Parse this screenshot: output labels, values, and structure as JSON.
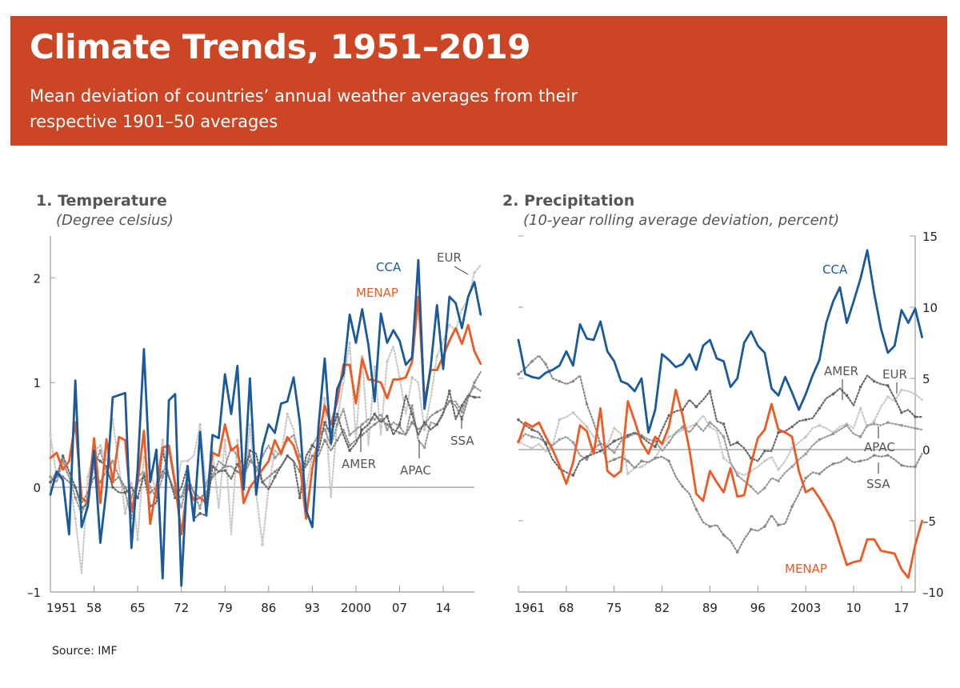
{
  "banner": {
    "title": "Climate Trends, 1951–2019",
    "subtitle": "Mean deviation of countries’ annual weather averages from their respective 1901–50 averages"
  },
  "source": "Source: IMF",
  "colors": {
    "banner": "#cc4524",
    "CCA": "#1a5a9a",
    "MENAP": "#ee5a24",
    "AMER": "#666666",
    "APAC": "#999999",
    "EUR": "#c8c8c8",
    "SSA": "#8a8a8a",
    "axis": "#999999"
  },
  "chart_data": [
    {
      "type": "line",
      "number": "1.",
      "title": "Temperature",
      "subtitle": "(Degree celsius)",
      "xlabel": "",
      "ylabel": "Degree celsius",
      "xlim": [
        1951,
        2019
      ],
      "ylim": [
        -1,
        2.4
      ],
      "yaxis_side": "left",
      "yticks": [
        -1,
        0,
        1,
        2
      ],
      "ytick_labels": [
        "–1",
        "0",
        "1",
        "2"
      ],
      "xticks": [
        1951,
        1958,
        1965,
        1972,
        1979,
        1986,
        1993,
        2000,
        2007,
        2014
      ],
      "xtick_labels": [
        "1951",
        "58",
        "65",
        "72",
        "79",
        "86",
        "93",
        "2000",
        "07",
        "14"
      ],
      "grid": false,
      "zero_line": true,
      "x_start": 1951,
      "series": [
        {
          "name": "CCA",
          "style": "solid",
          "values": [
            -0.07,
            0.15,
            0.07,
            -0.45,
            1.02,
            -0.38,
            -0.18,
            0.35,
            -0.53,
            -0.02,
            0.86,
            0.88,
            0.9,
            -0.58,
            0.18,
            1.32,
            0.05,
            0.36,
            -0.87,
            0.83,
            0.89,
            -0.94,
            0.2,
            -0.32,
            0.53,
            -0.27,
            0.5,
            0.47,
            1.08,
            0.7,
            1.16,
            -0.02,
            1.04,
            -0.07,
            0.38,
            0.6,
            0.52,
            0.8,
            0.82,
            1.05,
            0.62,
            -0.22,
            -0.38,
            0.58,
            1.23,
            0.42,
            0.94,
            1.08,
            1.65,
            1.38,
            1.7,
            1.36,
            0.82,
            1.66,
            1.38,
            1.5,
            1.4,
            1.17,
            1.24,
            2.17,
            0.75,
            1.15,
            1.74,
            1.13,
            1.82,
            1.76,
            1.52,
            1.82,
            1.96,
            1.65
          ]
        },
        {
          "name": "MENAP",
          "style": "solid",
          "values": [
            0.28,
            0.33,
            0.17,
            0.25,
            0.62,
            -0.1,
            -0.15,
            0.47,
            -0.15,
            0.46,
            0.05,
            0.48,
            0.45,
            -0.23,
            0.05,
            0.54,
            -0.35,
            0.0,
            0.38,
            0.4,
            0.04,
            -0.45,
            0.02,
            -0.12,
            -0.1,
            -0.15,
            0.33,
            0.3,
            0.6,
            0.35,
            0.4,
            -0.15,
            0.0,
            0.08,
            0.17,
            0.25,
            0.45,
            0.32,
            0.48,
            0.4,
            0.22,
            -0.3,
            0.18,
            0.45,
            0.78,
            0.6,
            0.82,
            1.17,
            1.17,
            0.8,
            1.23,
            1.03,
            1.02,
            1.0,
            0.85,
            1.03,
            1.03,
            1.05,
            1.2,
            1.82,
            0.82,
            1.12,
            1.12,
            1.25,
            1.4,
            1.52,
            1.37,
            1.55,
            1.3,
            1.18
          ]
        },
        {
          "name": "AMER",
          "style": "dotted",
          "values": [
            0.05,
            0.1,
            0.3,
            0.15,
            0.0,
            -0.2,
            -0.15,
            0.3,
            0.25,
            0.2,
            0.0,
            -0.05,
            -0.05,
            0.0,
            -0.1,
            0.12,
            -0.18,
            -0.15,
            0.35,
            0.1,
            -0.1,
            0.0,
            0.2,
            -0.3,
            -0.25,
            -0.27,
            0.2,
            0.15,
            0.16,
            0.08,
            0.22,
            0.1,
            0.35,
            0.32,
            0.05,
            -0.02,
            0.1,
            0.2,
            0.3,
            0.25,
            -0.1,
            0.3,
            0.4,
            0.35,
            0.62,
            0.5,
            0.7,
            0.5,
            0.35,
            0.42,
            0.55,
            0.6,
            0.7,
            0.62,
            0.68,
            0.5,
            0.6,
            0.88,
            0.7,
            0.5,
            0.62,
            0.55,
            0.6,
            0.7,
            0.92,
            0.65,
            0.78,
            0.88,
            0.86,
            0.86
          ]
        },
        {
          "name": "APAC",
          "style": "dotted",
          "values": [
            0.1,
            0.05,
            0.25,
            0.1,
            -0.1,
            -0.25,
            -0.1,
            0.2,
            0.35,
            0.15,
            0.25,
            0.1,
            -0.05,
            -0.3,
            0.1,
            0.15,
            0.0,
            -0.1,
            0.1,
            0.35,
            0.0,
            -0.2,
            0.1,
            -0.05,
            -0.2,
            0.05,
            0.1,
            0.25,
            0.2,
            0.38,
            0.3,
            0.2,
            0.3,
            0.15,
            0.3,
            0.4,
            0.28,
            0.35,
            0.45,
            0.5,
            0.3,
            0.2,
            0.4,
            0.5,
            0.55,
            0.4,
            0.6,
            0.75,
            0.5,
            0.55,
            0.6,
            0.65,
            0.65,
            0.7,
            0.55,
            0.62,
            0.58,
            0.5,
            0.78,
            0.45,
            0.38,
            0.62,
            0.6,
            0.72,
            0.82,
            0.82,
            0.72,
            0.88,
            0.96,
            0.92
          ]
        },
        {
          "name": "EUR",
          "style": "dotted",
          "values": [
            0.5,
            0.1,
            0.2,
            0.1,
            -0.3,
            -0.82,
            0.1,
            0.35,
            0.4,
            0.25,
            0.65,
            0.2,
            -0.25,
            0.05,
            -0.5,
            0.3,
            0.15,
            -0.05,
            0.45,
            0.1,
            -0.05,
            0.25,
            0.25,
            0.3,
            0.6,
            0.0,
            0.35,
            -0.2,
            0.45,
            -0.45,
            0.45,
            -0.1,
            0.6,
            -0.05,
            -0.55,
            0.0,
            0.35,
            0.3,
            0.7,
            0.55,
            0.25,
            -0.02,
            0.3,
            0.4,
            0.85,
            -0.1,
            0.65,
            1.0,
            1.38,
            0.45,
            1.25,
            0.4,
            1.15,
            0.5,
            1.2,
            1.35,
            1.05,
            0.7,
            1.05,
            1.0,
            0.55,
            0.85,
            1.25,
            1.4,
            1.55,
            1.5,
            1.7,
            1.8,
            2.05,
            2.12
          ]
        },
        {
          "name": "SSA",
          "style": "dotted",
          "values": [
            0.05,
            0.15,
            0.1,
            0.05,
            0.0,
            -0.15,
            -0.05,
            0.1,
            0.05,
            0.15,
            0.05,
            0.1,
            0.0,
            -0.1,
            0.05,
            0.1,
            -0.05,
            0.0,
            0.15,
            0.1,
            -0.05,
            -0.1,
            0.1,
            -0.05,
            -0.1,
            -0.05,
            0.1,
            0.15,
            0.2,
            0.2,
            0.15,
            0.1,
            0.25,
            0.2,
            0.05,
            0.1,
            0.15,
            0.2,
            0.3,
            0.25,
            0.15,
            0.2,
            0.3,
            0.3,
            0.45,
            0.35,
            0.45,
            0.55,
            0.4,
            0.45,
            0.5,
            0.55,
            0.6,
            0.65,
            0.6,
            0.55,
            0.52,
            0.5,
            0.62,
            0.55,
            0.6,
            0.68,
            0.72,
            0.75,
            0.82,
            0.78,
            0.65,
            0.85,
            1.0,
            1.1
          ]
        }
      ],
      "annotations": [
        {
          "label": "CCA",
          "series": "CCA"
        },
        {
          "label": "MENAP",
          "series": "MENAP"
        },
        {
          "label": "EUR",
          "series": "EUR"
        },
        {
          "label": "AMER",
          "series": "AMER"
        },
        {
          "label": "APAC",
          "series": "APAC"
        },
        {
          "label": "SSA",
          "series": "SSA"
        }
      ]
    },
    {
      "type": "line",
      "number": "2.",
      "title": "Precipitation",
      "subtitle": "(10-year rolling average deviation, percent)",
      "xlabel": "",
      "ylabel": "10-year rolling average deviation, percent",
      "xlim": [
        1961,
        2019
      ],
      "ylim": [
        -10,
        15
      ],
      "yaxis_side": "right",
      "yticks": [
        -10,
        -5,
        0,
        5,
        10,
        15
      ],
      "ytick_labels": [
        "–10",
        "–5",
        "0",
        "5",
        "10",
        "15"
      ],
      "xticks": [
        1961,
        1968,
        1975,
        1982,
        1989,
        1996,
        2003,
        2010,
        2017
      ],
      "xtick_labels": [
        "1961",
        "68",
        "75",
        "82",
        "89",
        "96",
        "2003",
        "10",
        "17"
      ],
      "grid": false,
      "zero_line": true,
      "x_start": 1961,
      "series": [
        {
          "name": "CCA",
          "style": "solid",
          "values": [
            7.7,
            5.3,
            5.1,
            5.0,
            5.4,
            5.6,
            5.9,
            6.9,
            5.9,
            8.8,
            7.8,
            7.7,
            9.0,
            6.9,
            6.2,
            4.8,
            4.6,
            4.1,
            5.0,
            1.2,
            2.8,
            6.7,
            6.3,
            5.8,
            6.0,
            6.7,
            5.6,
            7.3,
            7.7,
            6.4,
            6.2,
            4.4,
            5.0,
            7.5,
            8.3,
            7.3,
            6.8,
            4.3,
            3.8,
            5.1,
            4.0,
            2.8,
            3.9,
            5.2,
            6.3,
            8.9,
            10.4,
            11.4,
            8.9,
            10.4,
            12.0,
            14.0,
            11.0,
            8.5,
            6.8,
            7.3,
            9.8,
            8.9,
            9.9,
            7.9
          ]
        },
        {
          "name": "MENAP",
          "style": "solid",
          "values": [
            0.5,
            1.9,
            1.6,
            1.9,
            0.9,
            0.0,
            -1.1,
            -2.4,
            -0.9,
            1.7,
            1.3,
            -0.3,
            2.9,
            -1.5,
            -1.9,
            -1.5,
            3.4,
            2.0,
            0.5,
            -0.3,
            0.9,
            0.4,
            1.6,
            4.2,
            2.4,
            0.0,
            -3.1,
            -3.6,
            -1.5,
            -2.3,
            -3.0,
            -1.3,
            -3.3,
            -3.2,
            -1.0,
            0.8,
            1.4,
            3.2,
            1.4,
            1.2,
            0.9,
            -1.5,
            -3.0,
            -2.7,
            -3.4,
            -4.2,
            -5.1,
            -6.6,
            -8.1,
            -7.9,
            -7.8,
            -6.3,
            -6.3,
            -7.1,
            -7.2,
            -7.3,
            -8.4,
            -9.0,
            -6.7,
            -5.0
          ]
        },
        {
          "name": "AMER",
          "style": "dotted",
          "values": [
            2.1,
            1.7,
            1.4,
            1.2,
            0.4,
            -0.7,
            -1.3,
            -1.6,
            -1.8,
            -0.8,
            -0.5,
            -0.3,
            -0.1,
            0.2,
            0.6,
            0.8,
            1.0,
            1.2,
            0.9,
            0.5,
            0.2,
            1.4,
            2.4,
            2.7,
            2.8,
            3.5,
            3.0,
            3.5,
            4.1,
            2.0,
            1.8,
            0.3,
            0.5,
            0.1,
            -0.6,
            -0.8,
            -0.1,
            -0.1,
            1.2,
            1.3,
            1.6,
            2.0,
            2.1,
            2.2,
            2.9,
            3.6,
            3.9,
            4.3,
            3.8,
            3.1,
            4.4,
            5.2,
            4.8,
            4.6,
            4.5,
            3.6,
            2.6,
            2.8,
            2.3,
            2.3
          ]
        },
        {
          "name": "APAC",
          "style": "dotted",
          "values": [
            0.6,
            1.1,
            0.9,
            0.8,
            0.5,
            0.3,
            0.7,
            0.9,
            0.5,
            -0.4,
            -0.7,
            0.1,
            0.4,
            0.2,
            -0.2,
            0.6,
            0.9,
            1.1,
            1.0,
            0.7,
            0.6,
            -0.1,
            0.5,
            1.2,
            1.6,
            1.2,
            1.8,
            1.3,
            1.9,
            1.5,
            0.9,
            -0.9,
            -1.8,
            -2.2,
            -2.6,
            -3.1,
            -2.7,
            -2.0,
            -2.2,
            -1.6,
            -1.2,
            -0.7,
            -0.3,
            0.3,
            0.7,
            0.9,
            1.1,
            1.4,
            1.7,
            1.1,
            0.9,
            1.7,
            1.8,
            1.7,
            1.9,
            1.8,
            1.7,
            1.6,
            1.5,
            1.4
          ]
        },
        {
          "name": "EUR",
          "style": "dotted",
          "values": [
            0.6,
            0.3,
            0.1,
            0.4,
            -0.1,
            0.3,
            2.1,
            2.3,
            2.6,
            2.1,
            1.6,
            0.9,
            0.4,
            0.3,
            1.5,
            1.1,
            -1.7,
            -1.3,
            -1.2,
            -0.9,
            -0.6,
            0.3,
            0.9,
            1.1,
            1.4,
            1.6,
            1.8,
            2.4,
            1.6,
            1.3,
            -0.6,
            -1.0,
            -1.6,
            -1.8,
            -1.5,
            -1.2,
            -0.8,
            -0.5,
            -1.4,
            -0.8,
            0.1,
            0.5,
            0.9,
            1.5,
            1.7,
            1.5,
            1.2,
            1.6,
            1.8,
            1.5,
            2.9,
            1.6,
            2.0,
            3.0,
            3.7,
            3.4,
            4.2,
            4.1,
            3.9,
            3.5
          ]
        },
        {
          "name": "SSA",
          "style": "dotted",
          "values": [
            5.3,
            5.7,
            6.2,
            6.6,
            6.0,
            5.0,
            4.8,
            4.6,
            4.8,
            5.2,
            3.2,
            1.9,
            0.4,
            -0.9,
            -0.7,
            -0.5,
            -0.8,
            -1.3,
            -0.8,
            -0.9,
            -0.6,
            -0.5,
            -0.8,
            -1.9,
            -2.6,
            -3.1,
            -4.2,
            -5.1,
            -5.4,
            -5.3,
            -6.0,
            -6.4,
            -7.2,
            -6.3,
            -5.6,
            -5.7,
            -5.4,
            -4.6,
            -5.3,
            -5.2,
            -4.0,
            -3.1,
            -2.0,
            -1.6,
            -1.7,
            -1.3,
            -1.0,
            -0.9,
            -0.6,
            -0.9,
            -0.8,
            -0.7,
            -0.4,
            -0.5,
            -0.4,
            -0.7,
            -1.1,
            -1.2,
            -1.2,
            -0.3
          ]
        }
      ],
      "annotations": [
        {
          "label": "CCA",
          "series": "CCA"
        },
        {
          "label": "AMER",
          "series": "AMER"
        },
        {
          "label": "EUR",
          "series": "EUR"
        },
        {
          "label": "APAC",
          "series": "APAC"
        },
        {
          "label": "SSA",
          "series": "SSA"
        },
        {
          "label": "MENAP",
          "series": "MENAP"
        }
      ]
    }
  ]
}
